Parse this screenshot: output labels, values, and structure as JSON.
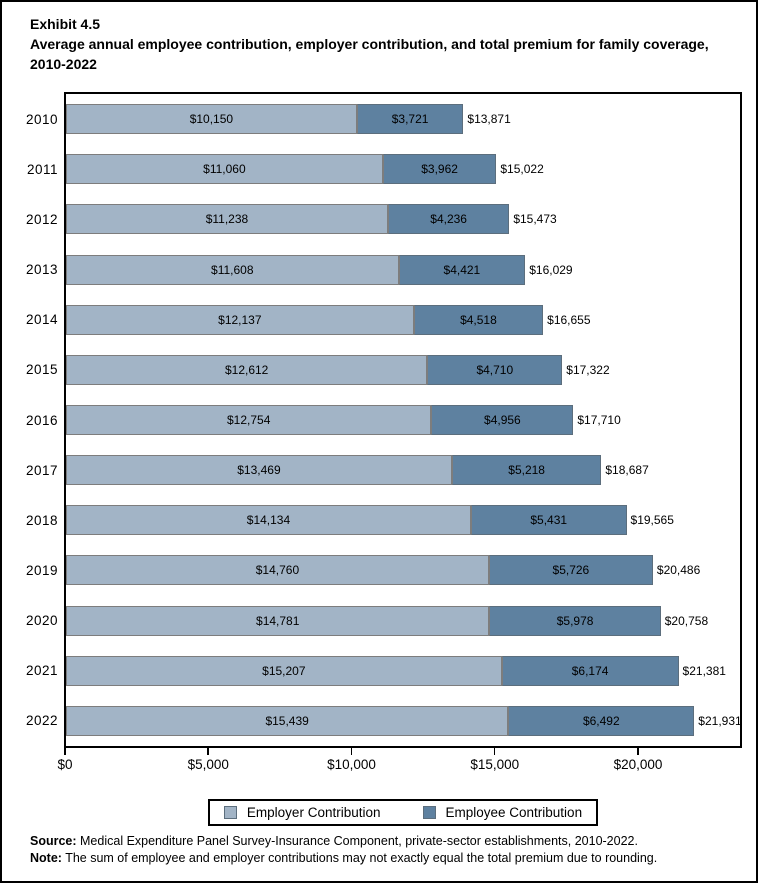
{
  "title": {
    "exhibit": "Exhibit 4.5",
    "description": "Average annual employee contribution, employer contribution, and total premium for family coverage, 2010-2022"
  },
  "chart_data": {
    "type": "bar",
    "orientation": "horizontal",
    "stacked": true,
    "title": "Average annual employee contribution, employer contribution, and total premium for family coverage, 2010-2022",
    "xlabel": "",
    "ylabel": "",
    "xlim": [
      0,
      23600
    ],
    "x_tick_values": [
      0,
      5000,
      10000,
      15000,
      20000
    ],
    "x_ticks": [
      "$0",
      "$5,000",
      "$10,000",
      "$15,000",
      "$20,000"
    ],
    "grid": false,
    "legend_position": "bottom",
    "categories": [
      "2010",
      "2011",
      "2012",
      "2013",
      "2014",
      "2015",
      "2016",
      "2017",
      "2018",
      "2019",
      "2020",
      "2021",
      "2022"
    ],
    "series": [
      {
        "name": "Employer Contribution",
        "values": [
          10150,
          11060,
          11238,
          11608,
          12137,
          12612,
          12754,
          13469,
          14134,
          14760,
          14781,
          15207,
          15439
        ]
      },
      {
        "name": "Employee Contribution",
        "values": [
          3721,
          3962,
          4236,
          4421,
          4518,
          4710,
          4956,
          5218,
          5431,
          5726,
          5978,
          6174,
          6492
        ]
      }
    ],
    "totals": [
      13871,
      15022,
      15473,
      16029,
      16655,
      17322,
      17710,
      18687,
      19565,
      20486,
      20758,
      21381,
      21931
    ],
    "rows": [
      {
        "year": "2010",
        "employer": 10150,
        "employee": 3721,
        "total": 13871
      },
      {
        "year": "2011",
        "employer": 11060,
        "employee": 3962,
        "total": 15022
      },
      {
        "year": "2012",
        "employer": 11238,
        "employee": 4236,
        "total": 15473
      },
      {
        "year": "2013",
        "employer": 11608,
        "employee": 4421,
        "total": 16029
      },
      {
        "year": "2014",
        "employer": 12137,
        "employee": 4518,
        "total": 16655
      },
      {
        "year": "2015",
        "employer": 12612,
        "employee": 4710,
        "total": 17322
      },
      {
        "year": "2016",
        "employer": 12754,
        "employee": 4956,
        "total": 17710
      },
      {
        "year": "2017",
        "employer": 13469,
        "employee": 5218,
        "total": 18687
      },
      {
        "year": "2018",
        "employer": 14134,
        "employee": 5431,
        "total": 19565
      },
      {
        "year": "2019",
        "employer": 14760,
        "employee": 5726,
        "total": 20486
      },
      {
        "year": "2020",
        "employer": 14781,
        "employee": 5978,
        "total": 20758
      },
      {
        "year": "2021",
        "employer": 15207,
        "employee": 6174,
        "total": 21381
      },
      {
        "year": "2022",
        "employer": 15439,
        "employee": 6492,
        "total": 21931
      }
    ],
    "colors": {
      "employer": "#a2b4c6",
      "employee": "#5e81a0"
    }
  },
  "legend": {
    "items": [
      {
        "label": "Employer Contribution",
        "color": "#a2b4c6"
      },
      {
        "label": "Employee Contribution",
        "color": "#5e81a0"
      }
    ]
  },
  "footer": {
    "source_label": "Source:",
    "source_text": " Medical Expenditure Panel Survey-Insurance Component, private-sector establishments, 2010-2022.",
    "note_label": "Note:",
    "note_text": " The sum of employee and employer contributions may not exactly equal the total premium due to rounding."
  }
}
